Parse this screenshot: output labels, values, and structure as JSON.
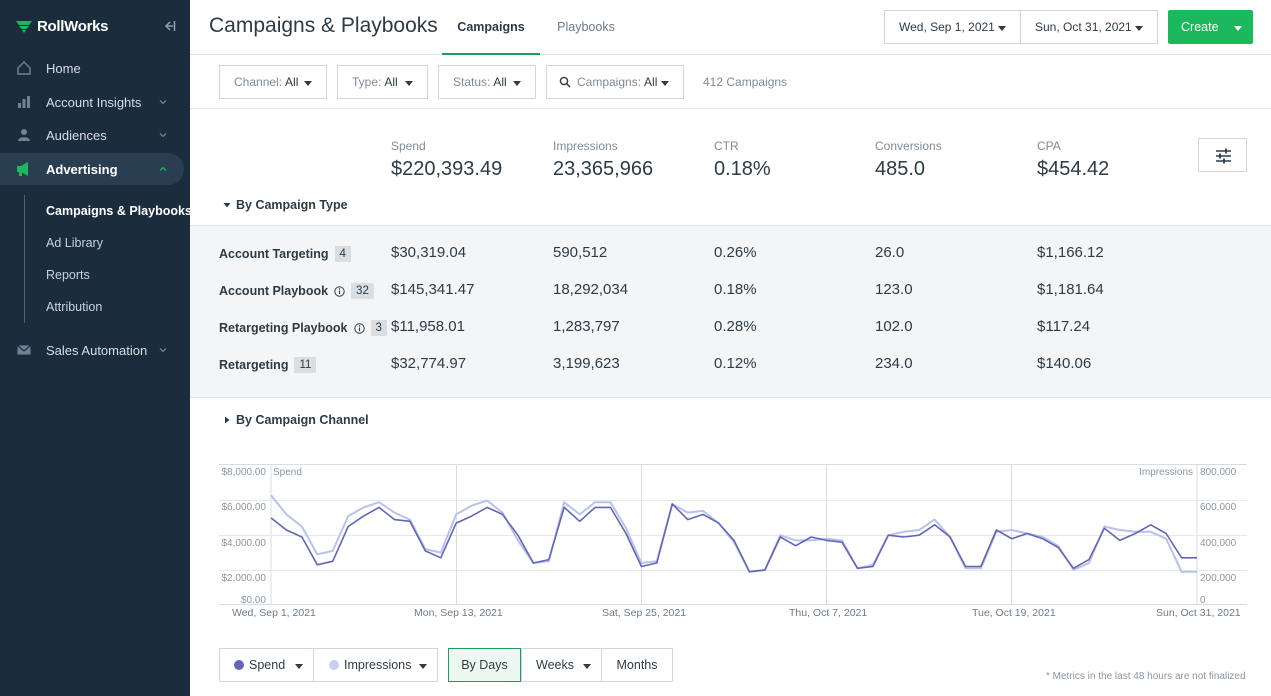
{
  "sidebar": {
    "brand": "RollWorks",
    "items": [
      {
        "label": "Home"
      },
      {
        "label": "Account Insights"
      },
      {
        "label": "Audiences"
      },
      {
        "label": "Advertising"
      },
      {
        "label": "Sales Automation"
      }
    ],
    "subitems": [
      {
        "label": "Campaigns & Playbooks"
      },
      {
        "label": "Ad Library"
      },
      {
        "label": "Reports"
      },
      {
        "label": "Attribution"
      }
    ]
  },
  "header": {
    "title": "Campaigns & Playbooks",
    "tabs": [
      {
        "label": "Campaigns"
      },
      {
        "label": "Playbooks"
      }
    ],
    "start_date": "Wed, Sep 1, 2021",
    "end_date": "Sun, Oct 31, 2021",
    "create_label": "Create"
  },
  "filters": {
    "channel": {
      "key": "Channel:",
      "value": "All"
    },
    "type": {
      "key": "Type:",
      "value": "All"
    },
    "status": {
      "key": "Status:",
      "value": "All"
    },
    "campaigns": {
      "key": "Campaigns:",
      "value": "All"
    },
    "count_text": "412 Campaigns"
  },
  "summary": {
    "metrics": [
      {
        "label": "Spend",
        "value": "$220,393.49"
      },
      {
        "label": "Impressions",
        "value": "23,365,966"
      },
      {
        "label": "CTR",
        "value": "0.18%"
      },
      {
        "label": "Conversions",
        "value": "485.0"
      },
      {
        "label": "CPA",
        "value": "$454.42"
      }
    ]
  },
  "by_type": {
    "toggle_label": "By Campaign Type",
    "rows": [
      {
        "name": "Account Targeting",
        "count": "4",
        "spend": "$30,319.04",
        "impressions": "590,512",
        "ctr": "0.26%",
        "conversions": "26.0",
        "cpa": "$1,166.12"
      },
      {
        "name": "Account Playbook",
        "count": "32",
        "spend": "$145,341.47",
        "impressions": "18,292,034",
        "ctr": "0.18%",
        "conversions": "123.0",
        "cpa": "$1,181.64"
      },
      {
        "name": "Retargeting Playbook",
        "count": "3",
        "spend": "$11,958.01",
        "impressions": "1,283,797",
        "ctr": "0.28%",
        "conversions": "102.0",
        "cpa": "$117.24"
      },
      {
        "name": "Retargeting",
        "count": "11",
        "spend": "$32,774.97",
        "impressions": "3,199,623",
        "ctr": "0.12%",
        "conversions": "234.0",
        "cpa": "$140.06"
      }
    ]
  },
  "by_channel": {
    "toggle_label": "By Campaign Channel"
  },
  "chart_data": {
    "type": "line",
    "left_axis_label": "Spend",
    "right_axis_label": "Impressions",
    "left_ticks": [
      "$8,000.00",
      "$6,000.00",
      "$4,000.00",
      "$2,000.00",
      "$0.00"
    ],
    "right_ticks": [
      "800,000",
      "600,000",
      "400,000",
      "200,000",
      "0"
    ],
    "ylim_left": [
      0,
      8000
    ],
    "ylim_right": [
      0,
      800000
    ],
    "x_labels": [
      "Wed, Sep 1, 2021",
      "Mon, Sep 13, 2021",
      "Sat, Sep 25, 2021",
      "Thu, Oct 7, 2021",
      "Tue, Oct 19, 2021",
      "Sun, Oct 31, 2021"
    ],
    "series": [
      {
        "name": "Spend",
        "color": "#6366b8",
        "values": [
          4900,
          4200,
          3800,
          2200,
          2400,
          4400,
          5000,
          5500,
          4800,
          4700,
          3000,
          2600,
          4600,
          5000,
          5500,
          5100,
          3900,
          2300,
          2500,
          5500,
          4700,
          5500,
          5500,
          4000,
          2100,
          2300,
          5700,
          4800,
          5100,
          4600,
          3600,
          1800,
          1900,
          3800,
          3300,
          3800,
          3600,
          3500,
          2000,
          2100,
          3900,
          3800,
          3900,
          4500,
          3800,
          2100,
          2100,
          4200,
          3700,
          4000,
          3700,
          3200,
          2000,
          2500,
          4300,
          3600,
          4000,
          4500,
          4000,
          2600,
          2600
        ]
      },
      {
        "name": "Impressions",
        "color": "#b8c2ea",
        "values": [
          620000,
          510000,
          440000,
          280000,
          300000,
          500000,
          550000,
          580000,
          520000,
          480000,
          310000,
          290000,
          510000,
          560000,
          590000,
          520000,
          360000,
          230000,
          240000,
          580000,
          510000,
          580000,
          580000,
          430000,
          230000,
          240000,
          570000,
          520000,
          530000,
          460000,
          350000,
          180000,
          190000,
          390000,
          360000,
          360000,
          370000,
          360000,
          200000,
          220000,
          390000,
          410000,
          420000,
          480000,
          380000,
          200000,
          200000,
          410000,
          420000,
          400000,
          380000,
          330000,
          190000,
          230000,
          440000,
          420000,
          410000,
          410000,
          370000,
          180000,
          180000
        ]
      }
    ]
  },
  "chart_controls": {
    "spend_label": "Spend",
    "impressions_label": "Impressions",
    "by_days": "By Days",
    "weeks": "Weeks",
    "months": "Months",
    "footnote": "* Metrics in the last 48 hours are not finalized"
  }
}
